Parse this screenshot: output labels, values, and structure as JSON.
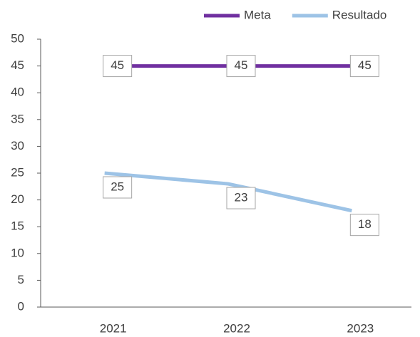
{
  "chart_data": {
    "type": "line",
    "categories": [
      "2021",
      "2022",
      "2023"
    ],
    "series": [
      {
        "name": "Meta",
        "color": "#7030a0",
        "values": [
          45,
          45,
          45
        ]
      },
      {
        "name": "Resultado",
        "color": "#9dc3e6",
        "values": [
          25,
          23,
          18
        ]
      }
    ],
    "ylim": [
      0,
      50
    ],
    "yticks": [
      0,
      5,
      10,
      15,
      20,
      25,
      30,
      35,
      40,
      45,
      50
    ],
    "grid": false,
    "legend": "top-right",
    "data_labels": true
  }
}
